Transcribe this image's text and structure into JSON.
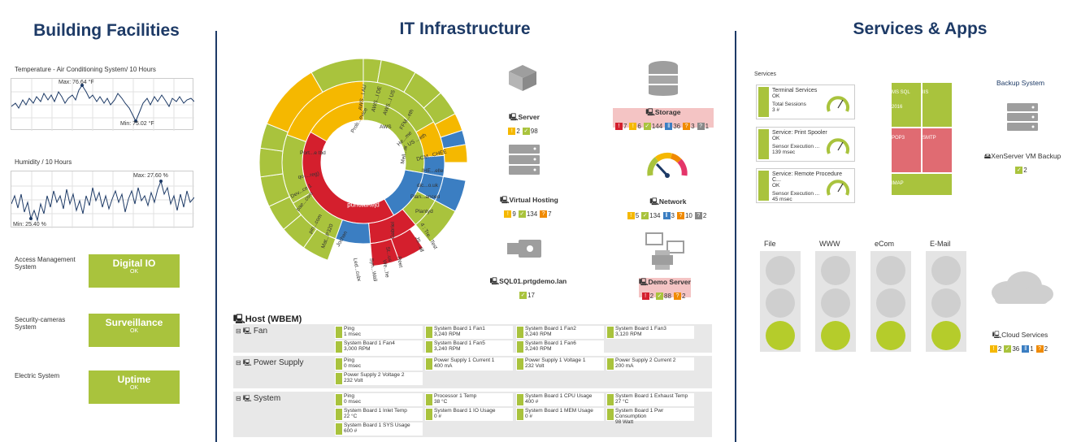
{
  "columns": {
    "building": "Building Facilities",
    "it": "IT Infrastructure",
    "services": "Services & Apps"
  },
  "building": {
    "temp_title": "Temperature - Air Conditioning System/ 10 Hours",
    "temp_max": "Max: 76.64 °F",
    "temp_min": "Min: 75.02 °F",
    "hum_title": "Humidity / 10 Hours",
    "hum_max": "Max: 27.60 %",
    "hum_min": "Min: 25.40 %",
    "access_label": "Access Management System",
    "access_tile": "Digital IO",
    "access_status": "OK",
    "security_label": "Security-cameras System",
    "security_tile": "Surveillance",
    "security_status": "OK",
    "electric_label": "Electric System",
    "electric_tile": "Uptime",
    "electric_status": "OK"
  },
  "sunburst": {
    "center": "playground",
    "labels": [
      "Prob...evice",
      "Port...e tbd",
      "AWS...l AU",
      "AWS...l DE",
      "AWS...l US",
      "AWS",
      "FFM...eth",
      "He...me",
      "US ...eth",
      "DCM...CHEE",
      "Meil...ar",
      "IHE...elle",
      "dic...o.uk",
      "Plan...anced",
      "Plantyd",
      "4 : Tre...Test",
      "JS...all",
      "Gabriel",
      "Reet",
      "We...he",
      "St...us",
      "Syn...Wall",
      "Led...cube",
      "Jochen",
      "Mat...P320",
      "pin...com",
      "pae...com",
      "Dev...ce 1",
      "qo-...reg)",
      "Jochen",
      "t h y s 1"
    ]
  },
  "devices": {
    "server": {
      "name": "Server",
      "badges": [
        {
          "t": "w",
          "v": "2"
        },
        {
          "t": "ok",
          "v": "98"
        }
      ]
    },
    "storage": {
      "name": "Storage",
      "badges": [
        {
          "t": "e",
          "v": "7"
        },
        {
          "t": "w",
          "v": "6"
        },
        {
          "t": "ok",
          "v": "144"
        },
        {
          "t": "p",
          "v": "36"
        },
        {
          "t": "u",
          "v": "3"
        },
        {
          "t": "g",
          "v": "1"
        }
      ]
    },
    "vhost": {
      "name": "Virtual Hosting",
      "badges": [
        {
          "t": "w",
          "v": "9"
        },
        {
          "t": "ok",
          "v": "134"
        },
        {
          "t": "u",
          "v": "7"
        }
      ]
    },
    "network": {
      "name": "Network",
      "badges": [
        {
          "t": "w",
          "v": "5"
        },
        {
          "t": "ok",
          "v": "134"
        },
        {
          "t": "p",
          "v": "3"
        },
        {
          "t": "u",
          "v": "10"
        },
        {
          "t": "g",
          "v": "2"
        }
      ]
    },
    "sql": {
      "name": "SQL01.prtgdemo.lan",
      "badges": [
        {
          "t": "ok",
          "v": "17"
        }
      ]
    },
    "demo": {
      "name": "Demo Server",
      "badges": [
        {
          "t": "e",
          "v": "2"
        },
        {
          "t": "ok",
          "v": "88"
        },
        {
          "t": "u",
          "v": "2"
        }
      ]
    }
  },
  "host": {
    "title": "Host (WBEM)",
    "groups": [
      {
        "name": "Fan",
        "sensors": [
          [
            "Ping",
            "1 msec"
          ],
          [
            "System Board 1 Fan1",
            "3,240 RPM"
          ],
          [
            "System Board 1 Fan2",
            "3,240 RPM"
          ],
          [
            "System Board 1 Fan3",
            "3,120 RPM"
          ],
          [
            "System Board 1 Fan4",
            "3,000 RPM"
          ],
          [
            "System Board 1 Fan5",
            "3,240 RPM"
          ],
          [
            "System Board 1 Fan6",
            "3,240 RPM"
          ]
        ]
      },
      {
        "name": "Power Supply",
        "sensors": [
          [
            "Ping",
            "0 msec"
          ],
          [
            "Power Supply 1 Current 1",
            "400 mA"
          ],
          [
            "Power Supply 1 Voltage 1",
            "232 Volt"
          ],
          [
            "Power Supply 2 Current 2",
            "200 mA"
          ],
          [
            "Power Supply 2 Voltage 2",
            "232 Volt"
          ]
        ]
      },
      {
        "name": "System",
        "sensors": [
          [
            "Ping",
            "0 msec"
          ],
          [
            "Processor 1 Temp",
            "38 °C"
          ],
          [
            "System Board 1 CPU Usage",
            "400 #"
          ],
          [
            "System Board 1 Exhaust Temp",
            "27 °C"
          ],
          [
            "System Board 1 Inlet Temp",
            "22 °C"
          ],
          [
            "System Board 1 IO Usage",
            "0 #"
          ],
          [
            "System Board 1 MEM Usage",
            "0 #"
          ],
          [
            "System Board 1 Pwr Consumption",
            "98 Watt"
          ],
          [
            "System Board 1 SYS Usage",
            "600 #"
          ]
        ]
      }
    ]
  },
  "services": {
    "label": "Services",
    "cards": [
      {
        "name": "Terminal Services",
        "status": "OK",
        "metric": "Total Sessions",
        "value": "3 #"
      },
      {
        "name": "Service: Print Spooler",
        "status": "OK",
        "metric": "Sensor Execution ...",
        "value": "139 msec"
      },
      {
        "name": "Service: Remote Procedure C...",
        "status": "OK",
        "metric": "Sensor Execution ...",
        "value": "45 msec"
      }
    ],
    "treemap": [
      "MS SQL 2016",
      "IIS",
      "POP3",
      "SMTP",
      "IMAP"
    ],
    "backup_title": "Backup System",
    "backup_name": "XenServer VM Backup",
    "backup_badges": [
      {
        "t": "ok",
        "v": "2"
      }
    ],
    "lights": [
      {
        "label": "File"
      },
      {
        "label": "WWW"
      },
      {
        "label": "eCom"
      },
      {
        "label": "E-Mail"
      }
    ],
    "cloud_name": "Cloud Services",
    "cloud_badges": [
      {
        "t": "w",
        "v": "2"
      },
      {
        "t": "ok",
        "v": "36"
      },
      {
        "t": "p",
        "v": "1"
      },
      {
        "t": "u",
        "v": "2"
      }
    ]
  },
  "colors": {
    "green": "#a9c33d",
    "yellow": "#f5b800",
    "red": "#d41f2d",
    "blue": "#3b7ec2",
    "navy": "#1d3a66",
    "pink": "#f4c4c4"
  }
}
